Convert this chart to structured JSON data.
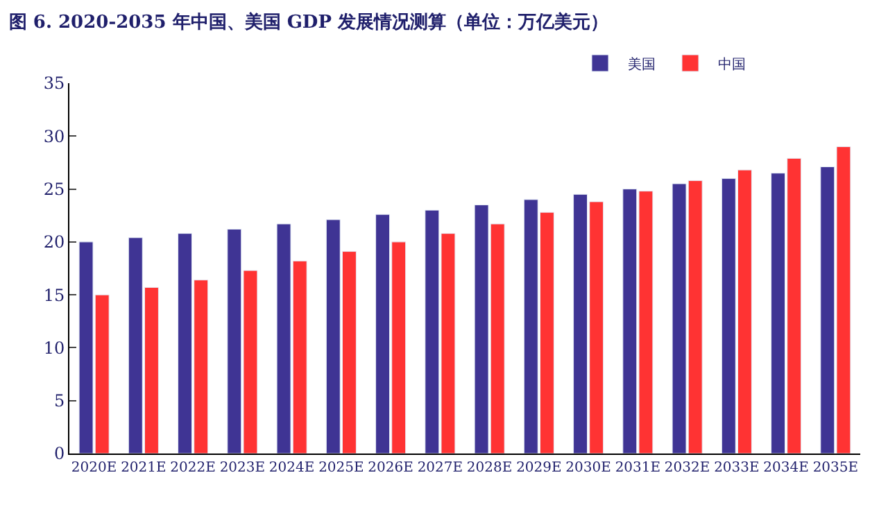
{
  "chart_data": {
    "type": "bar",
    "title": "图 6. 2020-2035 年中国、美国 GDP 发展情况测算（单位：万亿美元）",
    "categories": [
      "2020E",
      "2021E",
      "2022E",
      "2023E",
      "2024E",
      "2025E",
      "2026E",
      "2027E",
      "2028E",
      "2029E",
      "2030E",
      "2031E",
      "2032E",
      "2033E",
      "2034E",
      "2035E"
    ],
    "series": [
      {
        "name": "美国",
        "color": "#3f3494",
        "values": [
          20.0,
          20.4,
          20.8,
          21.2,
          21.7,
          22.1,
          22.6,
          23.0,
          23.5,
          24.0,
          24.5,
          25.0,
          25.5,
          26.0,
          26.5,
          27.1
        ]
      },
      {
        "name": "中国",
        "color": "#ff3333",
        "values": [
          15.0,
          15.7,
          16.4,
          17.3,
          18.2,
          19.1,
          20.0,
          20.8,
          21.7,
          22.8,
          23.8,
          24.8,
          25.8,
          26.8,
          27.9,
          29.0
        ]
      }
    ],
    "ylim": [
      0,
      35
    ],
    "yticks": [
      0,
      5,
      10,
      15,
      20,
      25,
      30,
      35
    ],
    "legend": "top"
  }
}
